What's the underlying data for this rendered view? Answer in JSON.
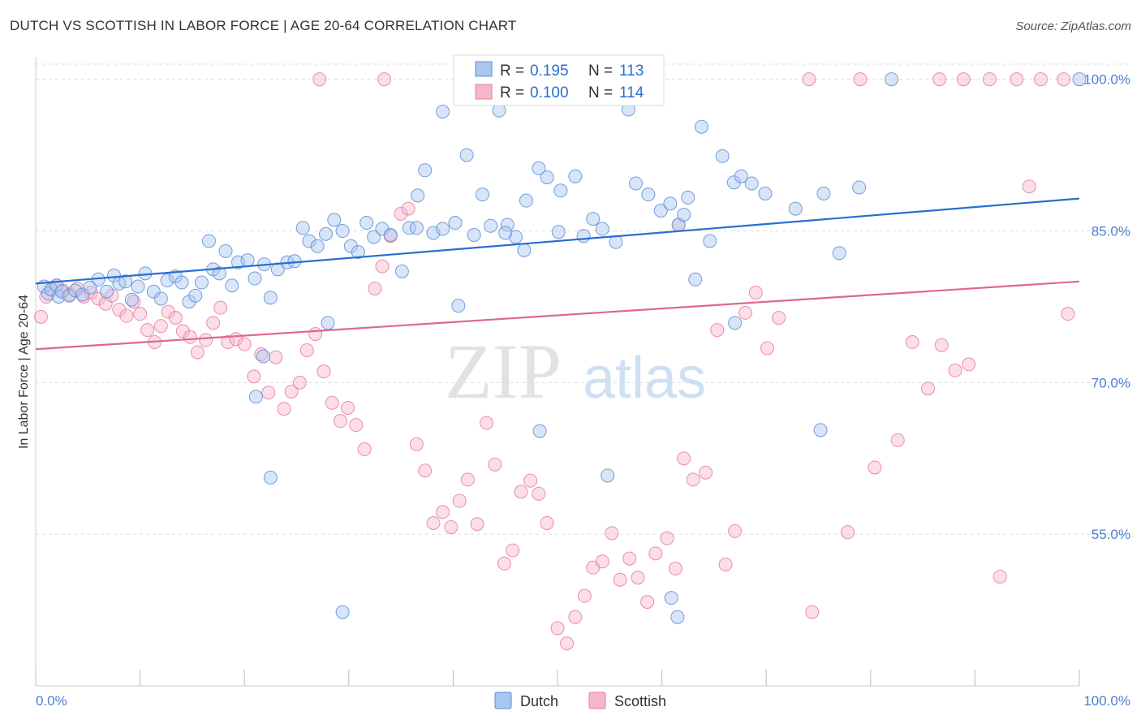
{
  "header": {
    "title": "DUTCH VS SCOTTISH IN LABOR FORCE | AGE 20-64 CORRELATION CHART",
    "source": "Source: ZipAtlas.com"
  },
  "watermark": {
    "zip": "ZIP",
    "atlas": "atlas"
  },
  "legend_stats": {
    "rows": [
      {
        "r_label": "R =",
        "r_value": "0.195",
        "n_label": "N =",
        "n_value": "113"
      },
      {
        "r_label": "R =",
        "r_value": "0.100",
        "n_label": "N =",
        "n_value": "114"
      }
    ]
  },
  "colors": {
    "dutch_fill": "#a9c6ef",
    "dutch_stroke": "#5b8fd6",
    "dutch_line": "#2a6dd0",
    "scottish_fill": "#f6b6c9",
    "scottish_stroke": "#e67c9f",
    "scottish_line": "#e0668f",
    "tick_label": "#4a7fd0",
    "grid": "#dcdcdc"
  },
  "chart_data": {
    "type": "scatter",
    "title": "DUTCH VS SCOTTISH IN LABOR FORCE | AGE 20-64 CORRELATION CHART",
    "xlabel": "",
    "ylabel": "In Labor Force | Age 20-64",
    "xlim": [
      0,
      100
    ],
    "ylim": [
      40,
      101.5
    ],
    "x_tick_labels": [
      "0.0%",
      "100.0%"
    ],
    "y_ticks": [
      55,
      70,
      85,
      100
    ],
    "y_tick_labels": [
      "55.0%",
      "70.0%",
      "85.0%",
      "100.0%"
    ],
    "grid": true,
    "legend": "bottom-center",
    "series": [
      {
        "name": "Dutch",
        "r": 0.195,
        "n": 113,
        "trend": [
          [
            0,
            79.8
          ],
          [
            100,
            88.2
          ]
        ],
        "points": [
          [
            0.8,
            79.5
          ],
          [
            1.2,
            78.8
          ],
          [
            1.5,
            79.2
          ],
          [
            2.0,
            79.6
          ],
          [
            2.2,
            78.5
          ],
          [
            2.5,
            79.0
          ],
          [
            3.2,
            78.6
          ],
          [
            3.8,
            79.1
          ],
          [
            4.5,
            78.7
          ],
          [
            5.2,
            79.4
          ],
          [
            6.0,
            80.2
          ],
          [
            6.8,
            79.0
          ],
          [
            7.5,
            80.6
          ],
          [
            8.0,
            79.8
          ],
          [
            8.6,
            80.0
          ],
          [
            9.2,
            78.2
          ],
          [
            9.8,
            79.5
          ],
          [
            10.5,
            80.8
          ],
          [
            11.3,
            79.0
          ],
          [
            12.0,
            78.3
          ],
          [
            12.6,
            80.1
          ],
          [
            13.4,
            80.5
          ],
          [
            14.0,
            79.9
          ],
          [
            14.7,
            78.0
          ],
          [
            15.3,
            78.6
          ],
          [
            15.9,
            79.9
          ],
          [
            16.6,
            84.0
          ],
          [
            17.0,
            81.2
          ],
          [
            17.6,
            80.8
          ],
          [
            18.2,
            83.0
          ],
          [
            18.8,
            79.6
          ],
          [
            19.4,
            81.9
          ],
          [
            20.3,
            82.1
          ],
          [
            21.0,
            80.3
          ],
          [
            21.9,
            81.7
          ],
          [
            22.5,
            78.4
          ],
          [
            23.2,
            81.2
          ],
          [
            24.1,
            81.9
          ],
          [
            24.8,
            82.0
          ],
          [
            25.6,
            85.3
          ],
          [
            26.2,
            84.0
          ],
          [
            27.0,
            83.5
          ],
          [
            27.8,
            84.7
          ],
          [
            28.6,
            86.1
          ],
          [
            29.4,
            85.0
          ],
          [
            30.2,
            83.5
          ],
          [
            30.9,
            82.9
          ],
          [
            31.7,
            85.8
          ],
          [
            32.4,
            84.4
          ],
          [
            33.2,
            85.2
          ],
          [
            34.0,
            84.6
          ],
          [
            35.1,
            81.0
          ],
          [
            35.8,
            85.3
          ],
          [
            36.6,
            88.5
          ],
          [
            37.3,
            91.0
          ],
          [
            38.1,
            84.8
          ],
          [
            39.0,
            96.8
          ],
          [
            40.2,
            85.8
          ],
          [
            41.3,
            92.5
          ],
          [
            42.0,
            84.6
          ],
          [
            42.8,
            88.6
          ],
          [
            43.6,
            85.5
          ],
          [
            44.4,
            96.9
          ],
          [
            45.2,
            85.6
          ],
          [
            46.0,
            84.4
          ],
          [
            47.0,
            88.0
          ],
          [
            48.2,
            91.2
          ],
          [
            49.0,
            90.3
          ],
          [
            50.3,
            89.0
          ],
          [
            51.7,
            90.4
          ],
          [
            52.5,
            84.5
          ],
          [
            53.4,
            86.2
          ],
          [
            54.3,
            85.2
          ],
          [
            55.6,
            83.9
          ],
          [
            56.8,
            97.0
          ],
          [
            57.5,
            89.7
          ],
          [
            58.7,
            88.6
          ],
          [
            59.9,
            87.0
          ],
          [
            60.8,
            87.7
          ],
          [
            61.6,
            85.6
          ],
          [
            62.5,
            88.3
          ],
          [
            63.8,
            95.3
          ],
          [
            64.6,
            84.0
          ],
          [
            65.8,
            92.4
          ],
          [
            66.9,
            89.8
          ],
          [
            67.6,
            90.4
          ],
          [
            68.6,
            89.7
          ],
          [
            69.9,
            88.7
          ],
          [
            72.8,
            87.2
          ],
          [
            75.5,
            88.7
          ],
          [
            77.0,
            82.8
          ],
          [
            78.9,
            89.3
          ],
          [
            39.0,
            85.2
          ],
          [
            46.8,
            83.1
          ],
          [
            45.0,
            84.8
          ],
          [
            28.0,
            75.9
          ],
          [
            36.5,
            85.3
          ],
          [
            50.1,
            84.9
          ],
          [
            62.1,
            86.6
          ],
          [
            63.2,
            80.2
          ],
          [
            48.3,
            65.2
          ],
          [
            54.8,
            60.8
          ],
          [
            60.9,
            48.7
          ],
          [
            61.5,
            46.8
          ],
          [
            75.2,
            65.3
          ],
          [
            40.5,
            77.6
          ],
          [
            21.1,
            68.6
          ],
          [
            21.8,
            72.6
          ],
          [
            22.5,
            60.6
          ],
          [
            29.4,
            47.3
          ],
          [
            67.0,
            75.9
          ],
          [
            82.0,
            100
          ],
          [
            100,
            100
          ]
        ]
      },
      {
        "name": "Scottish",
        "r": 0.1,
        "n": 114,
        "trend": [
          [
            0,
            73.3
          ],
          [
            100,
            80.0
          ]
        ],
        "points": [
          [
            0.5,
            76.5
          ],
          [
            1.0,
            78.5
          ],
          [
            1.5,
            79.2
          ],
          [
            2.0,
            79.6
          ],
          [
            2.6,
            79.1
          ],
          [
            3.3,
            78.7
          ],
          [
            4.0,
            79.3
          ],
          [
            4.6,
            78.5
          ],
          [
            5.3,
            78.9
          ],
          [
            6.0,
            78.3
          ],
          [
            6.7,
            77.8
          ],
          [
            7.3,
            78.6
          ],
          [
            8.0,
            77.2
          ],
          [
            8.7,
            76.6
          ],
          [
            9.4,
            78.0
          ],
          [
            10.0,
            76.8
          ],
          [
            10.7,
            75.2
          ],
          [
            11.4,
            74.0
          ],
          [
            12.0,
            75.6
          ],
          [
            12.7,
            77.0
          ],
          [
            13.4,
            76.4
          ],
          [
            14.1,
            75.1
          ],
          [
            14.8,
            74.5
          ],
          [
            15.5,
            73.0
          ],
          [
            16.3,
            74.2
          ],
          [
            17.0,
            75.9
          ],
          [
            17.7,
            77.4
          ],
          [
            18.4,
            74.0
          ],
          [
            19.2,
            74.3
          ],
          [
            20.0,
            73.8
          ],
          [
            20.9,
            70.6
          ],
          [
            21.6,
            72.8
          ],
          [
            22.3,
            69.0
          ],
          [
            23.0,
            72.5
          ],
          [
            23.8,
            67.4
          ],
          [
            24.5,
            69.1
          ],
          [
            25.3,
            70.0
          ],
          [
            26.0,
            73.2
          ],
          [
            26.8,
            74.8
          ],
          [
            27.6,
            71.1
          ],
          [
            28.4,
            68.0
          ],
          [
            29.2,
            66.2
          ],
          [
            29.9,
            67.5
          ],
          [
            30.7,
            65.8
          ],
          [
            31.5,
            63.4
          ],
          [
            32.5,
            79.3
          ],
          [
            33.2,
            81.5
          ],
          [
            34.0,
            84.5
          ],
          [
            35.0,
            86.7
          ],
          [
            35.7,
            87.2
          ],
          [
            36.5,
            63.9
          ],
          [
            37.3,
            61.3
          ],
          [
            38.1,
            56.1
          ],
          [
            39.0,
            57.2
          ],
          [
            39.8,
            55.7
          ],
          [
            40.6,
            58.3
          ],
          [
            41.4,
            60.4
          ],
          [
            42.3,
            56.0
          ],
          [
            43.2,
            66.0
          ],
          [
            44.0,
            61.9
          ],
          [
            44.9,
            52.1
          ],
          [
            45.7,
            53.4
          ],
          [
            46.5,
            59.2
          ],
          [
            47.4,
            60.3
          ],
          [
            48.2,
            59.0
          ],
          [
            49.0,
            56.1
          ],
          [
            50.0,
            45.7
          ],
          [
            50.9,
            44.2
          ],
          [
            51.7,
            46.8
          ],
          [
            52.6,
            48.9
          ],
          [
            53.4,
            51.7
          ],
          [
            54.3,
            52.3
          ],
          [
            55.2,
            55.1
          ],
          [
            56.0,
            50.5
          ],
          [
            56.9,
            52.6
          ],
          [
            57.7,
            50.7
          ],
          [
            58.6,
            48.3
          ],
          [
            59.4,
            53.1
          ],
          [
            60.5,
            54.6
          ],
          [
            61.3,
            51.6
          ],
          [
            62.1,
            62.5
          ],
          [
            63.0,
            60.4
          ],
          [
            64.2,
            61.1
          ],
          [
            65.3,
            75.2
          ],
          [
            66.1,
            52.0
          ],
          [
            67.0,
            55.3
          ],
          [
            68.0,
            76.9
          ],
          [
            69.0,
            78.9
          ],
          [
            70.1,
            73.4
          ],
          [
            71.2,
            76.4
          ],
          [
            74.4,
            47.3
          ],
          [
            77.8,
            55.2
          ],
          [
            80.4,
            61.6
          ],
          [
            82.6,
            64.3
          ],
          [
            84.0,
            74.0
          ],
          [
            85.5,
            69.4
          ],
          [
            86.8,
            73.7
          ],
          [
            88.1,
            71.2
          ],
          [
            89.4,
            71.8
          ],
          [
            92.4,
            50.8
          ],
          [
            27.2,
            100
          ],
          [
            33.4,
            100
          ],
          [
            57.6,
            100
          ],
          [
            74.1,
            100
          ],
          [
            79.0,
            100
          ],
          [
            86.6,
            100
          ],
          [
            88.9,
            100
          ],
          [
            91.4,
            100
          ],
          [
            94.0,
            100
          ],
          [
            96.3,
            100
          ],
          [
            98.5,
            100
          ],
          [
            95.2,
            89.4
          ],
          [
            61.6,
            85.6
          ],
          [
            98.9,
            76.8
          ]
        ]
      }
    ]
  }
}
